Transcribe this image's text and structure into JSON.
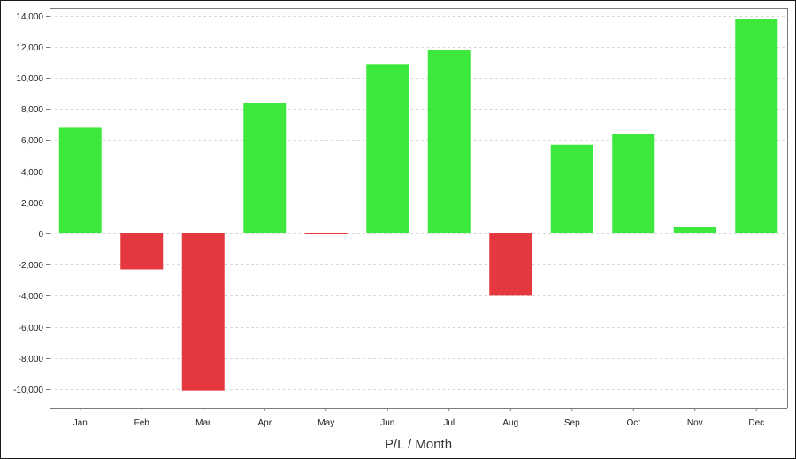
{
  "chart_data": {
    "type": "bar",
    "title": "",
    "xlabel": "P/L / Month",
    "ylabel": "",
    "categories": [
      "Jan",
      "Feb",
      "Mar",
      "Apr",
      "May",
      "Jun",
      "Jul",
      "Aug",
      "Sep",
      "Oct",
      "Nov",
      "Dec"
    ],
    "values": [
      6800,
      -2300,
      -10100,
      8400,
      -50,
      10900,
      11800,
      -4000,
      5700,
      6400,
      400,
      13800
    ],
    "ylim": [
      -11200,
      14500
    ],
    "yticks": [
      -10000,
      -8000,
      -6000,
      -4000,
      -2000,
      0,
      2000,
      4000,
      6000,
      8000,
      10000,
      12000,
      14000
    ],
    "ytick_labels": [
      "-10,000",
      "-8,000",
      "-6,000",
      "-4,000",
      "-2,000",
      "0",
      "2,000",
      "4,000",
      "6,000",
      "8,000",
      "10,000",
      "12,000",
      "14,000"
    ],
    "grid": true,
    "legend": "none",
    "colors": {
      "positive": "#3de83d",
      "negative": "#e5383e",
      "grid": "#d9d9d9",
      "axis": "#7a7a7a"
    }
  }
}
